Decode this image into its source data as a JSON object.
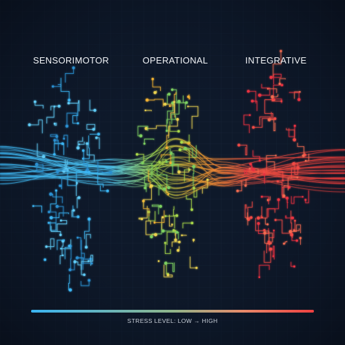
{
  "stages": [
    {
      "label": "SENSORIMOTOR"
    },
    {
      "label": "OPERATIONAL"
    },
    {
      "label": "INTEGRATIVE"
    }
  ],
  "legend": {
    "label": "STRESS LEVEL: LOW → HIGH"
  }
}
